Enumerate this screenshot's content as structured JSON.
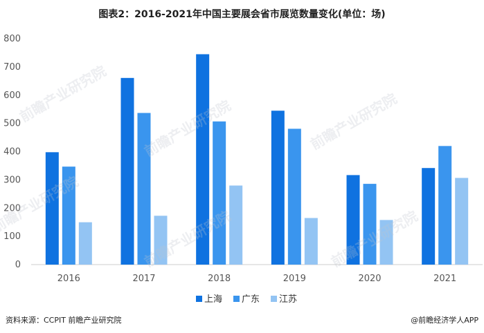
{
  "title": "图表2：2016-2021年中国主要展会省市展览数量变化(单位：场)",
  "footer": {
    "source": "资料来源：CCPIT 前瞻产业研究院",
    "brand": "@前瞻经济学人APP"
  },
  "watermark": "前瞻产业研究院",
  "colors": {
    "series": [
      "#0f72e0",
      "#3a95ee",
      "#93c4f3"
    ],
    "axis": "#cccccc",
    "tick": "#555555"
  },
  "chart_data": {
    "type": "bar",
    "title": "图表2：2016-2021年中国主要展会省市展览数量变化(单位：场)",
    "categories": [
      "2016",
      "2017",
      "2018",
      "2019",
      "2020",
      "2021"
    ],
    "series": [
      {
        "name": "上海",
        "values": [
          398,
          661,
          745,
          545,
          317,
          342
        ]
      },
      {
        "name": "广东",
        "values": [
          347,
          537,
          507,
          481,
          286,
          420
        ]
      },
      {
        "name": "江苏",
        "values": [
          150,
          173,
          280,
          165,
          158,
          307
        ]
      }
    ],
    "ylim": [
      0,
      800
    ],
    "yticks": [
      "0",
      "100",
      "200",
      "300",
      "400",
      "500",
      "600",
      "700",
      "800"
    ],
    "grid": false,
    "legend": "bottom"
  }
}
